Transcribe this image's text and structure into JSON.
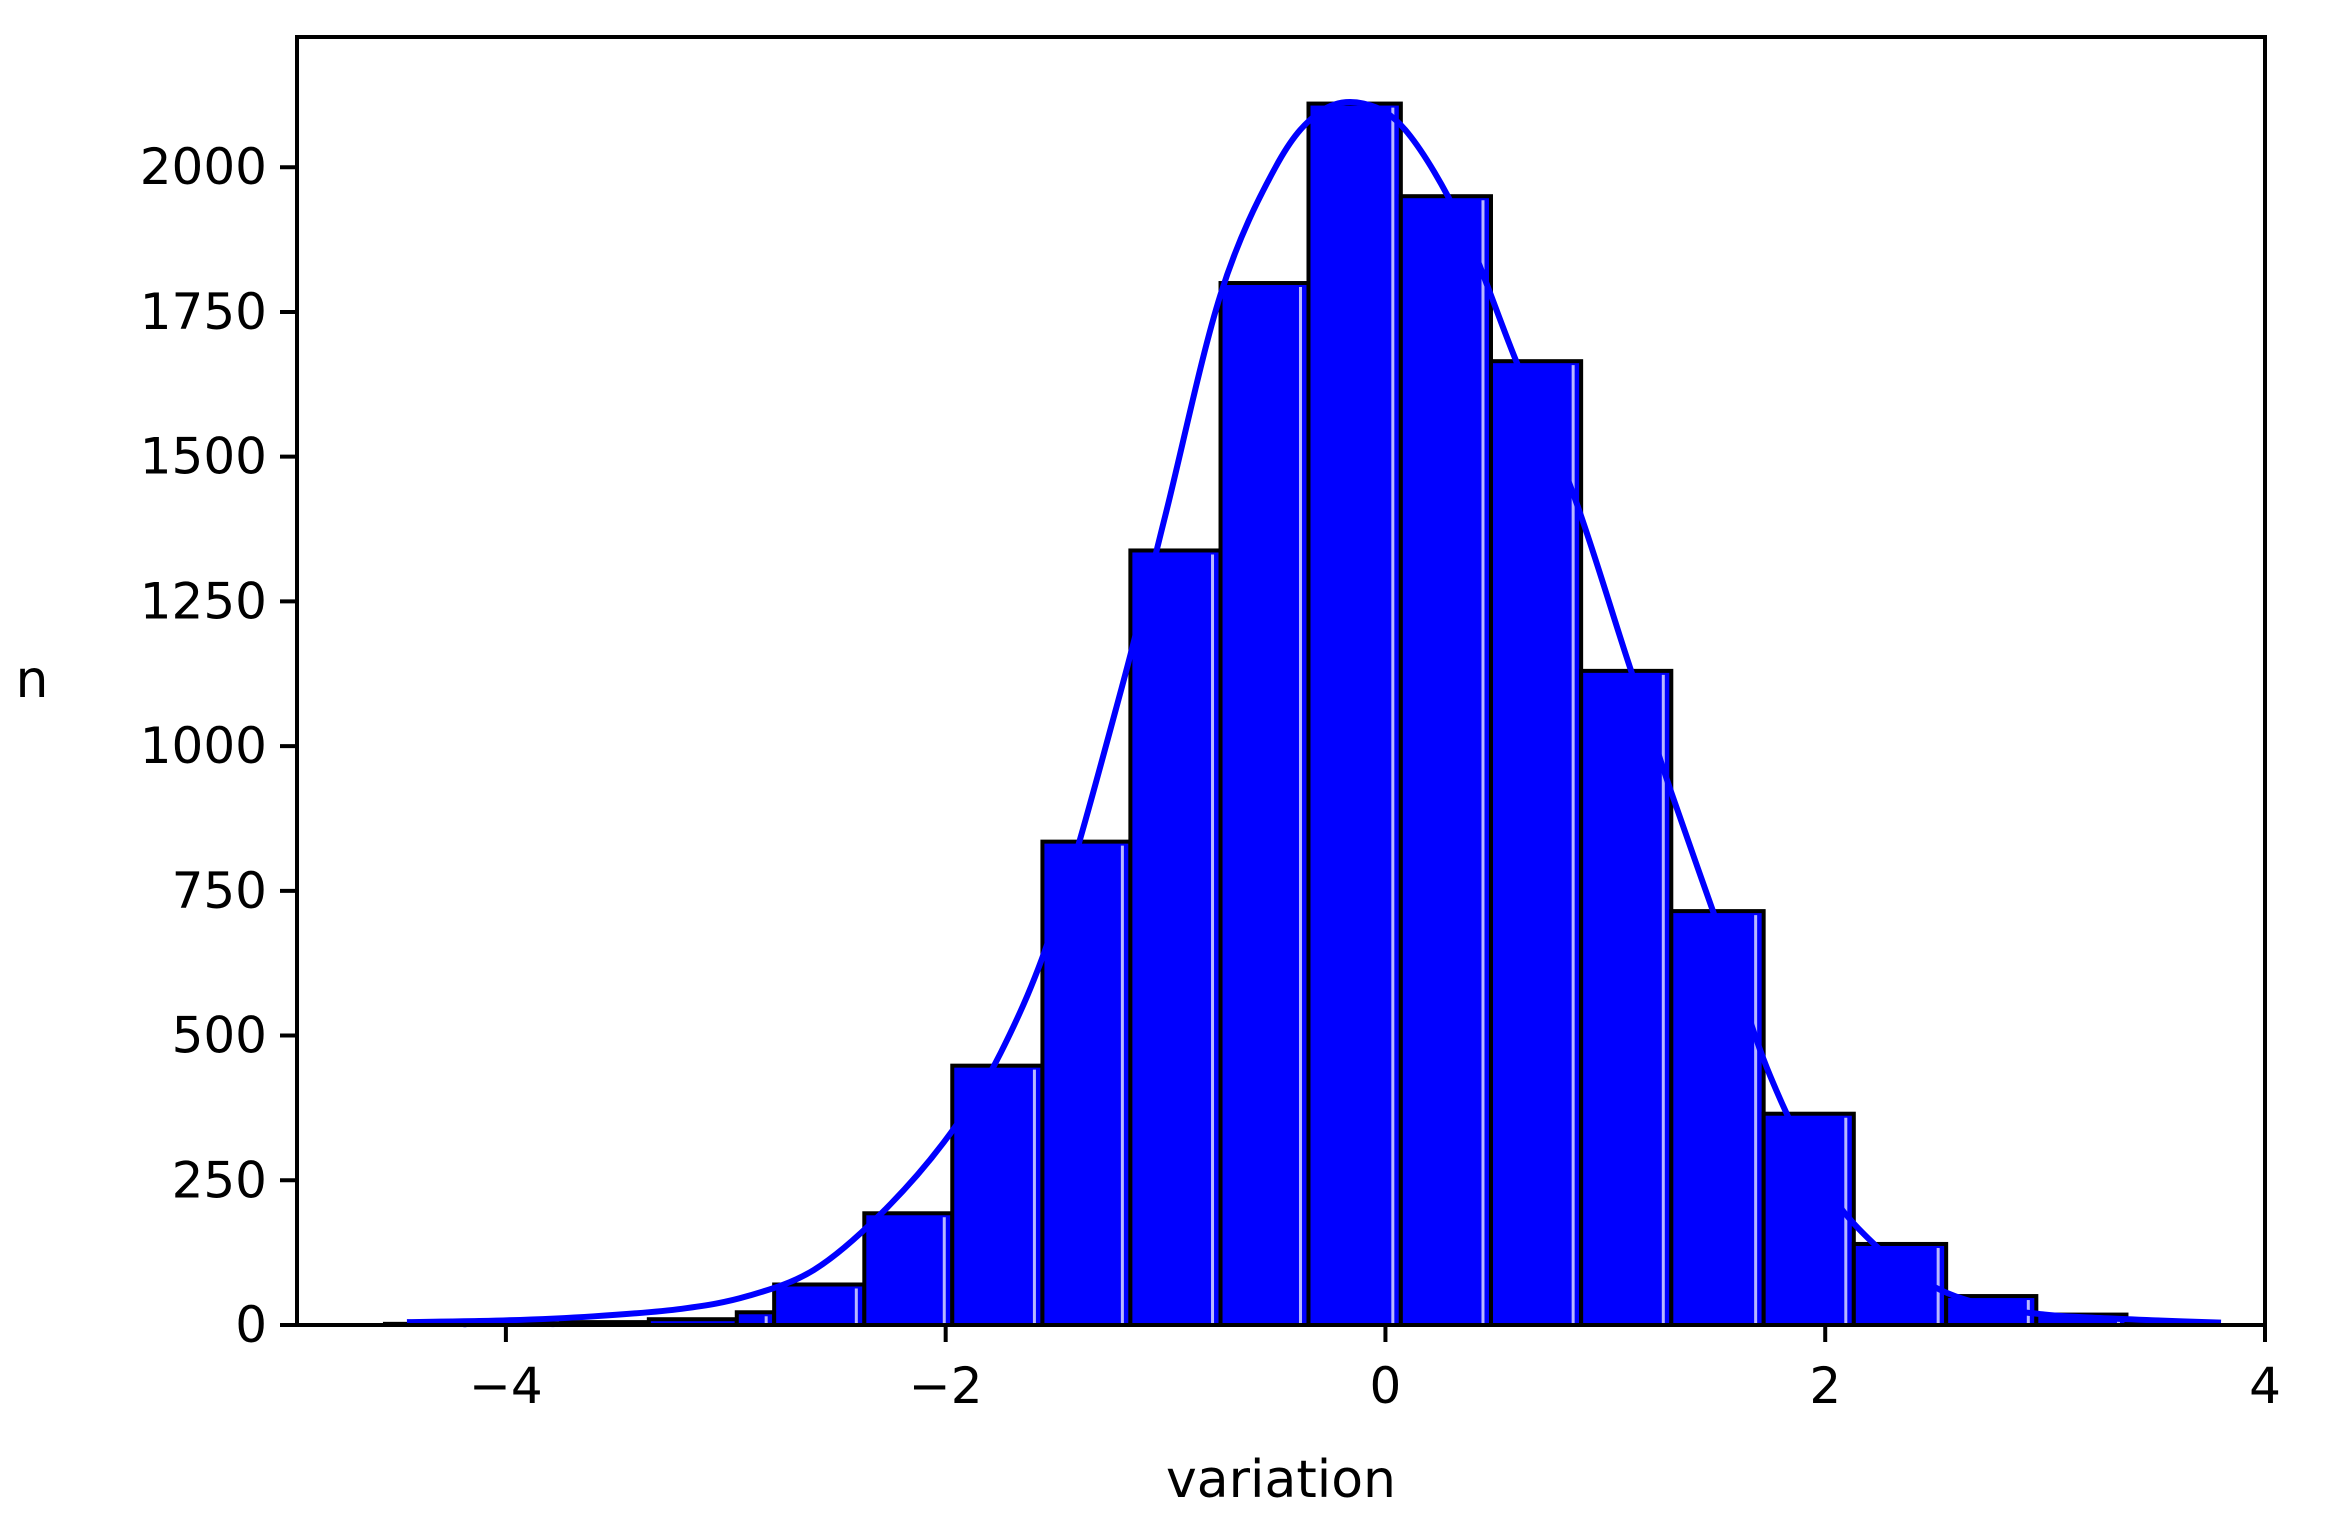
{
  "chart_data": {
    "type": "bar",
    "title": "",
    "xlabel": "variation",
    "ylabel": "n",
    "xlim": [
      -4.95,
      4.0
    ],
    "ylim": [
      0,
      2225
    ],
    "xticks": [
      -4,
      -2,
      0,
      2,
      4
    ],
    "xtick_labels": [
      "−4",
      "−2",
      "0",
      "2",
      "4"
    ],
    "yticks": [
      0,
      250,
      500,
      750,
      1000,
      1250,
      1500,
      1750,
      2000
    ],
    "ytick_labels": [
      "0",
      "250",
      "500",
      "750",
      "1000",
      "1250",
      "1500",
      "1750",
      "2000"
    ],
    "bins": [
      {
        "x0": -4.55,
        "x1": -4.15,
        "value": 2
      },
      {
        "x0": -4.15,
        "x1": -3.75,
        "value": 3
      },
      {
        "x0": -3.75,
        "x1": -3.35,
        "value": 5
      },
      {
        "x0": -3.35,
        "x1": -2.95,
        "value": 10
      },
      {
        "x0": -2.95,
        "x1": -2.78,
        "value": 22
      },
      {
        "x0": -2.78,
        "x1": -2.37,
        "value": 70
      },
      {
        "x0": -2.37,
        "x1": -1.97,
        "value": 193
      },
      {
        "x0": -1.97,
        "x1": -1.56,
        "value": 448
      },
      {
        "x0": -1.56,
        "x1": -1.16,
        "value": 835
      },
      {
        "x0": -1.16,
        "x1": -0.75,
        "value": 1338
      },
      {
        "x0": -0.75,
        "x1": -0.35,
        "value": 1800
      },
      {
        "x0": -0.35,
        "x1": 0.07,
        "value": 2110
      },
      {
        "x0": 0.07,
        "x1": 0.48,
        "value": 1950
      },
      {
        "x0": 0.48,
        "x1": 0.89,
        "value": 1665
      },
      {
        "x0": 0.89,
        "x1": 1.3,
        "value": 1130
      },
      {
        "x0": 1.3,
        "x1": 1.72,
        "value": 715
      },
      {
        "x0": 1.72,
        "x1": 2.13,
        "value": 365
      },
      {
        "x0": 2.13,
        "x1": 2.55,
        "value": 140
      },
      {
        "x0": 2.55,
        "x1": 2.96,
        "value": 50
      },
      {
        "x0": 2.96,
        "x1": 3.37,
        "value": 18
      },
      {
        "x0": 3.37,
        "x1": 3.79,
        "value": 5
      }
    ],
    "kde": {
      "x": [
        -4.45,
        -4.0,
        -3.6,
        -3.2,
        -2.9,
        -2.6,
        -2.3,
        -2.0,
        -1.75,
        -1.5,
        -1.2,
        -1.0,
        -0.75,
        -0.5,
        -0.3,
        -0.1,
        0.1,
        0.35,
        0.6,
        0.85,
        1.1,
        1.3,
        1.55,
        1.75,
        2.0,
        2.25,
        2.5,
        2.75,
        3.0,
        3.25,
        3.5,
        3.8
      ],
      "y": [
        5,
        8,
        15,
        28,
        50,
        95,
        190,
        320,
        470,
        700,
        1100,
        1400,
        1780,
        2000,
        2095,
        2110,
        2060,
        1900,
        1660,
        1440,
        1150,
        920,
        650,
        430,
        240,
        130,
        65,
        32,
        18,
        12,
        8,
        4
      ]
    },
    "bar_color": "#0000ff",
    "bar_edge_color": "#000000",
    "line_color": "#0000ff",
    "grid": false,
    "legend": "none"
  }
}
